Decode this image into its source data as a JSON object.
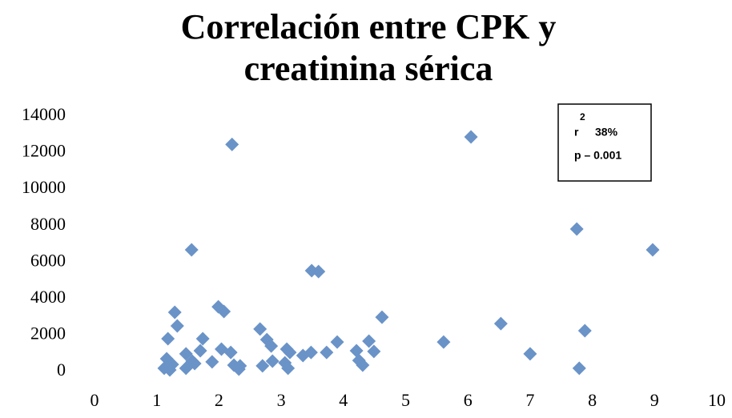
{
  "chart_data": {
    "type": "scatter",
    "title": "Correlación entre CPK y",
    "subtitle": "creatinina sérica",
    "annotation_symbol": "r",
    "annotation_sup": "2",
    "annotations": [
      "38%",
      "p – 0.001"
    ],
    "color": "#6a93c8",
    "grid": false,
    "xlim": [
      0,
      10
    ],
    "xticks": [
      0,
      1,
      2,
      3,
      4,
      5,
      6,
      7,
      8,
      9,
      10
    ],
    "ylim": [
      0,
      14000
    ],
    "yticks": [
      0,
      2000,
      4000,
      6000,
      8000,
      10000,
      12000,
      14000
    ],
    "x": [
      2.21,
      6.05,
      7.75,
      8.97,
      1.56,
      3.49,
      3.6,
      1.29,
      1.33,
      1.99,
      2.08,
      4.62,
      6.53,
      7.88,
      2.66,
      1.18,
      1.74,
      2.77,
      3.9,
      4.41,
      5.61,
      2.84,
      2.04,
      2.19,
      1.7,
      3.09,
      3.14,
      3.48,
      3.35,
      3.73,
      4.21,
      4.49,
      7.0,
      1.47,
      1.16,
      1.25,
      1.12,
      1.21,
      1.57,
      1.47,
      1.61,
      1.89,
      2.24,
      2.32,
      2.34,
      2.7,
      2.86,
      3.06,
      3.11,
      4.25,
      4.31,
      7.79
    ],
    "values": [
      12450,
      12860,
      7810,
      6670,
      6670,
      5530,
      5480,
      3250,
      2500,
      3550,
      3290,
      2980,
      2630,
      2240,
      2330,
      1800,
      1800,
      1750,
      1620,
      1670,
      1620,
      1400,
      1230,
      1050,
      1140,
      1230,
      1050,
      1050,
      880,
      1050,
      1140,
      1100,
      970,
      970,
      700,
      390,
      180,
      90,
      570,
      180,
      440,
      530,
      350,
      130,
      310,
      310,
      570,
      480,
      180,
      610,
      350,
      180
    ]
  }
}
